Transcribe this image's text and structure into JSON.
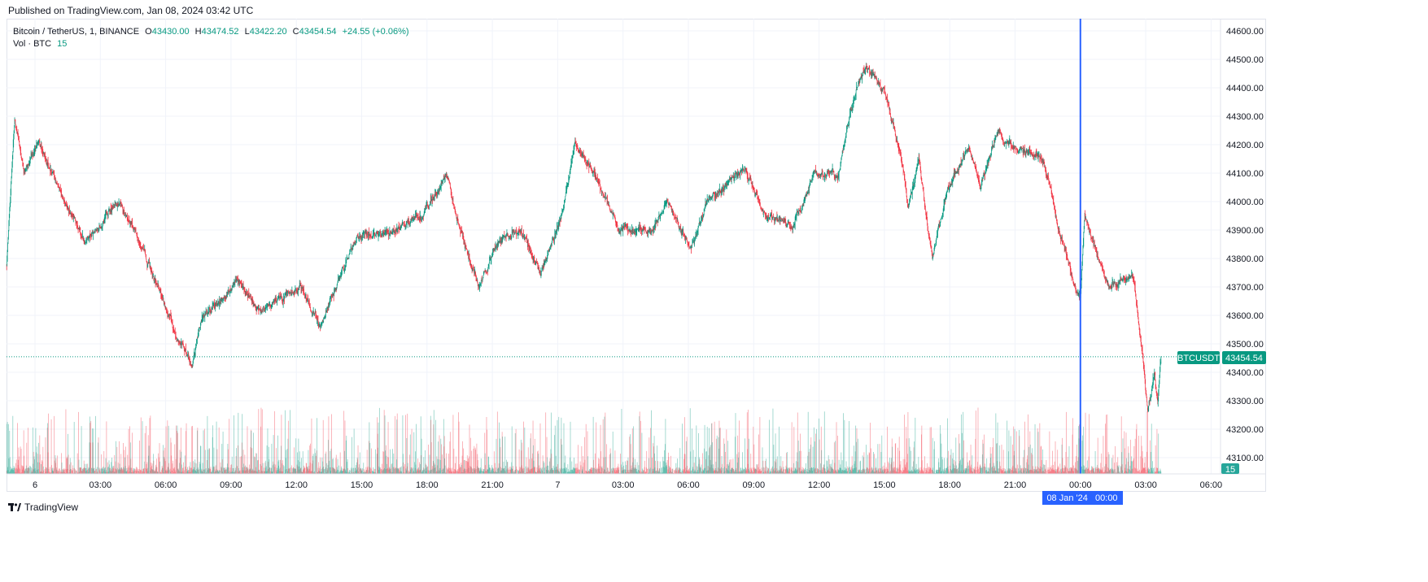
{
  "published": "Published on TradingView.com, Jan 08, 2024 03:42 UTC",
  "legend": {
    "symbol": "Bitcoin / TetherUS, 1, BINANCE",
    "o_label": "O",
    "o": "43430.00",
    "h_label": "H",
    "h": "43474.52",
    "l_label": "L",
    "l": "43422.20",
    "c_label": "C",
    "c": "43454.54",
    "change": "+24.55 (+0.06%)",
    "vol_label": "Vol · BTC",
    "vol": "15"
  },
  "price_label": {
    "ticker": "BTCUSDT",
    "price": "43454.54"
  },
  "volume_badge": "15",
  "crosshair_label": "08 Jan '24   00:00",
  "footer": {
    "brand": "TradingView"
  },
  "colors": {
    "up": "#089981",
    "down": "#f23645",
    "crosshair": "#2962ff",
    "grid": "#f0f3fa"
  },
  "chart_data": {
    "type": "candlestick",
    "title": "Bitcoin / TetherUS, 1, BINANCE",
    "interval": "1 minute",
    "x_unit": "hours since Jan 6 2024 00:00 UTC",
    "xlim": [
      -1.3,
      54.2
    ],
    "ylim": [
      43050,
      44650
    ],
    "y_ticks": [
      "44600.00",
      "44500.00",
      "44400.00",
      "44300.00",
      "44200.00",
      "44100.00",
      "44000.00",
      "43900.00",
      "43800.00",
      "43700.00",
      "43600.00",
      "43500.00",
      "43400.00",
      "43300.00",
      "43200.00",
      "43100.00"
    ],
    "x_ticks": [
      {
        "h": 0,
        "label": "6"
      },
      {
        "h": 3,
        "label": "03:00"
      },
      {
        "h": 6,
        "label": "06:00"
      },
      {
        "h": 9,
        "label": "09:00"
      },
      {
        "h": 12,
        "label": "12:00"
      },
      {
        "h": 15,
        "label": "15:00"
      },
      {
        "h": 18,
        "label": "18:00"
      },
      {
        "h": 21,
        "label": "21:00"
      },
      {
        "h": 24,
        "label": "7"
      },
      {
        "h": 27,
        "label": "03:00"
      },
      {
        "h": 30,
        "label": "06:00"
      },
      {
        "h": 33,
        "label": "09:00"
      },
      {
        "h": 36,
        "label": "12:00"
      },
      {
        "h": 39,
        "label": "15:00"
      },
      {
        "h": 42,
        "label": "18:00"
      },
      {
        "h": 45,
        "label": "21:00"
      },
      {
        "h": 48,
        "label": "00:00"
      },
      {
        "h": 51,
        "label": "03:00"
      },
      {
        "h": 54,
        "label": "06:00"
      }
    ],
    "price_path": [
      [
        -1.3,
        43780
      ],
      [
        -0.93,
        44300
      ],
      [
        -0.5,
        44100
      ],
      [
        0.19,
        44200
      ],
      [
        1.38,
        44000
      ],
      [
        2.3,
        43850
      ],
      [
        3.8,
        44000
      ],
      [
        4.9,
        43850
      ],
      [
        5.9,
        43650
      ],
      [
        6.4,
        43550
      ],
      [
        7.2,
        43420
      ],
      [
        7.7,
        43600
      ],
      [
        9.4,
        43720
      ],
      [
        10.3,
        43620
      ],
      [
        12.2,
        43700
      ],
      [
        13.1,
        43560
      ],
      [
        14.1,
        43750
      ],
      [
        14.8,
        43880
      ],
      [
        16.3,
        43900
      ],
      [
        17.8,
        43950
      ],
      [
        18.9,
        44100
      ],
      [
        19.5,
        43900
      ],
      [
        20.4,
        43700
      ],
      [
        21.2,
        43850
      ],
      [
        22.3,
        43900
      ],
      [
        23.2,
        43750
      ],
      [
        24.2,
        43950
      ],
      [
        24.8,
        44200
      ],
      [
        25.7,
        44100
      ],
      [
        26.8,
        43900
      ],
      [
        28.3,
        43900
      ],
      [
        29,
        44000
      ],
      [
        30.1,
        43850
      ],
      [
        30.9,
        44000
      ],
      [
        32.6,
        44120
      ],
      [
        33.5,
        43950
      ],
      [
        34.8,
        43920
      ],
      [
        35.8,
        44100
      ],
      [
        36.9,
        44100
      ],
      [
        37.7,
        44400
      ],
      [
        38.2,
        44470
      ],
      [
        39.1,
        44380
      ],
      [
        39.9,
        44100
      ],
      [
        40.1,
        43980
      ],
      [
        40.6,
        44150
      ],
      [
        41.2,
        43800
      ],
      [
        41.9,
        44050
      ],
      [
        42.9,
        44180
      ],
      [
        43.4,
        44050
      ],
      [
        44.2,
        44240
      ],
      [
        45.1,
        44180
      ],
      [
        46.3,
        44150
      ],
      [
        47,
        43900
      ],
      [
        48,
        43650
      ],
      [
        48.2,
        43950
      ],
      [
        49.3,
        43700
      ],
      [
        50.4,
        43750
      ],
      [
        50.8,
        43500
      ],
      [
        51.1,
        43250
      ],
      [
        51.4,
        43400
      ],
      [
        51.55,
        43280
      ],
      [
        51.7,
        43454.54
      ]
    ],
    "last": {
      "open": 43430.0,
      "high": 43474.52,
      "low": 43422.2,
      "close": 43454.54,
      "change": 24.55,
      "change_pct": 0.06,
      "volume": 15
    },
    "crosshair_time": "08 Jan '24 00:00"
  }
}
